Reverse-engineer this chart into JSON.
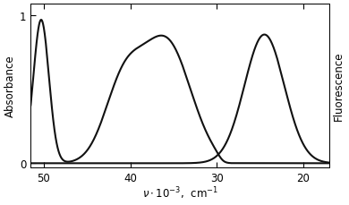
{
  "ylabel_left": "Absorbance",
  "ylabel_right": "Fluorescence",
  "x_ticks": [
    50,
    40,
    30,
    20
  ],
  "x_tick_labels": [
    "50",
    "40",
    "30",
    "20"
  ],
  "y_ticks": [
    0,
    1
  ],
  "y_tick_labels": [
    "0",
    "1"
  ],
  "background_color": "#ffffff",
  "line_color": "#111111",
  "linewidth": 1.5,
  "figsize": [
    3.9,
    2.3
  ],
  "dpi": 100,
  "xlim": [
    51.5,
    17.0
  ],
  "ylim": [
    -0.03,
    1.08
  ]
}
